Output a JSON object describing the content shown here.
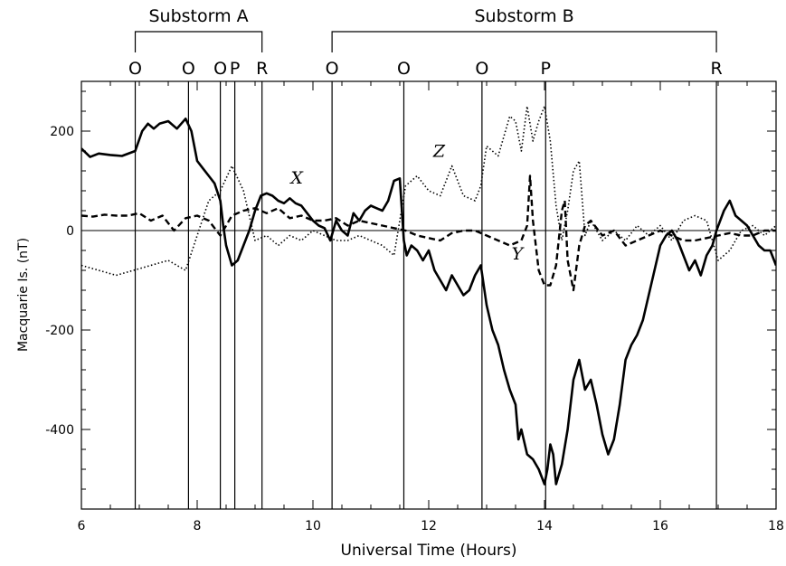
{
  "chart_data": {
    "type": "line",
    "xlabel": "Universal Time (Hours)",
    "ylabel": "Macquarie Is. (nT)",
    "xlim": [
      6,
      18
    ],
    "ylim": [
      -560,
      300
    ],
    "xticks": [
      6,
      8,
      10,
      12,
      14,
      16,
      18
    ],
    "xtick_labels": [
      "6",
      "8",
      "10",
      "12",
      "14",
      "16",
      "18"
    ],
    "yticks": [
      -400,
      -200,
      0,
      200
    ],
    "ytick_labels": [
      "-400",
      "-200",
      "0",
      "200"
    ],
    "grid": false,
    "zero_line": true,
    "brackets": [
      {
        "label": "Substorm A",
        "start": 6.93,
        "end": 9.12
      },
      {
        "label": "Substorm B",
        "start": 10.33,
        "end": 16.97
      }
    ],
    "events": [
      {
        "x": 6.93,
        "label": "O"
      },
      {
        "x": 7.85,
        "label": "O"
      },
      {
        "x": 8.4,
        "label": "O"
      },
      {
        "x": 8.65,
        "label": "P"
      },
      {
        "x": 9.12,
        "label": "R"
      },
      {
        "x": 10.33,
        "label": "O"
      },
      {
        "x": 11.57,
        "label": "O"
      },
      {
        "x": 12.92,
        "label": "O"
      },
      {
        "x": 14.02,
        "label": "P"
      },
      {
        "x": 16.97,
        "label": "R"
      }
    ],
    "series": [
      {
        "name": "X",
        "style": "solid",
        "label_at": [
          9.72,
          95
        ],
        "x": [
          6.0,
          6.15,
          6.3,
          6.5,
          6.7,
          6.93,
          7.05,
          7.15,
          7.25,
          7.35,
          7.5,
          7.65,
          7.8,
          7.9,
          7.95,
          8.0,
          8.1,
          8.2,
          8.3,
          8.4,
          8.45,
          8.5,
          8.55,
          8.6,
          8.7,
          8.8,
          8.9,
          9.0,
          9.1,
          9.2,
          9.3,
          9.4,
          9.5,
          9.6,
          9.7,
          9.8,
          9.9,
          10.0,
          10.1,
          10.2,
          10.3,
          10.4,
          10.5,
          10.6,
          10.7,
          10.8,
          10.9,
          11.0,
          11.1,
          11.2,
          11.3,
          11.4,
          11.5,
          11.57,
          11.62,
          11.7,
          11.8,
          11.9,
          12.0,
          12.1,
          12.2,
          12.3,
          12.4,
          12.5,
          12.6,
          12.7,
          12.8,
          12.9,
          13.0,
          13.1,
          13.2,
          13.3,
          13.4,
          13.5,
          13.55,
          13.6,
          13.7,
          13.8,
          13.9,
          14.0,
          14.05,
          14.1,
          14.15,
          14.2,
          14.3,
          14.4,
          14.5,
          14.6,
          14.7,
          14.8,
          14.9,
          15.0,
          15.1,
          15.2,
          15.3,
          15.4,
          15.5,
          15.6,
          15.7,
          15.8,
          15.9,
          16.0,
          16.1,
          16.2,
          16.3,
          16.4,
          16.5,
          16.6,
          16.7,
          16.8,
          16.9,
          16.97,
          17.1,
          17.2,
          17.3,
          17.4,
          17.5,
          17.6,
          17.7,
          17.8,
          17.9,
          18.0
        ],
        "values": [
          165,
          148,
          155,
          152,
          150,
          160,
          200,
          215,
          205,
          215,
          220,
          205,
          225,
          200,
          170,
          140,
          125,
          110,
          95,
          60,
          10,
          -30,
          -50,
          -70,
          -60,
          -30,
          0,
          40,
          70,
          75,
          70,
          60,
          55,
          65,
          55,
          50,
          35,
          20,
          10,
          5,
          -20,
          20,
          0,
          -10,
          35,
          20,
          40,
          50,
          45,
          40,
          60,
          100,
          105,
          -20,
          -50,
          -30,
          -40,
          -60,
          -40,
          -80,
          -100,
          -120,
          -90,
          -110,
          -130,
          -120,
          -90,
          -70,
          -150,
          -200,
          -230,
          -280,
          -320,
          -350,
          -420,
          -400,
          -450,
          -460,
          -480,
          -510,
          -480,
          -430,
          -450,
          -510,
          -470,
          -400,
          -300,
          -260,
          -320,
          -300,
          -350,
          -410,
          -450,
          -420,
          -350,
          -260,
          -230,
          -210,
          -180,
          -130,
          -80,
          -30,
          -10,
          0,
          -20,
          -50,
          -80,
          -60,
          -90,
          -50,
          -30,
          0,
          40,
          60,
          30,
          20,
          10,
          -10,
          -30,
          -40,
          -40,
          -70
        ]
      },
      {
        "name": "Y",
        "style": "dashed",
        "label_at": [
          13.53,
          -58
        ],
        "x": [
          6.0,
          6.2,
          6.4,
          6.6,
          6.8,
          7.0,
          7.2,
          7.4,
          7.6,
          7.8,
          8.0,
          8.2,
          8.4,
          8.6,
          8.8,
          9.0,
          9.2,
          9.4,
          9.6,
          9.8,
          10.0,
          10.2,
          10.4,
          10.6,
          10.8,
          11.0,
          11.2,
          11.4,
          11.6,
          11.8,
          12.0,
          12.2,
          12.4,
          12.6,
          12.8,
          13.0,
          13.2,
          13.4,
          13.6,
          13.7,
          13.75,
          13.8,
          13.9,
          14.0,
          14.1,
          14.2,
          14.3,
          14.35,
          14.4,
          14.5,
          14.6,
          14.7,
          14.8,
          15.0,
          15.2,
          15.4,
          15.6,
          15.8,
          16.0,
          16.2,
          16.4,
          16.6,
          16.8,
          17.0,
          17.2,
          17.4,
          17.6,
          17.8,
          18.0
        ],
        "values": [
          30,
          28,
          32,
          30,
          30,
          35,
          20,
          30,
          0,
          25,
          30,
          20,
          -10,
          30,
          40,
          45,
          35,
          45,
          25,
          30,
          20,
          20,
          25,
          10,
          20,
          15,
          10,
          5,
          0,
          -10,
          -15,
          -20,
          -5,
          0,
          0,
          -10,
          -20,
          -30,
          -20,
          10,
          110,
          20,
          -80,
          -110,
          -110,
          -70,
          40,
          60,
          -60,
          -120,
          -30,
          10,
          20,
          -10,
          0,
          -30,
          -20,
          -10,
          0,
          -10,
          -20,
          -20,
          -15,
          -10,
          -5,
          -10,
          -10,
          0,
          0
        ]
      },
      {
        "name": "Z",
        "style": "dotted",
        "label_at": [
          12.18,
          148
        ],
        "x": [
          6.0,
          6.3,
          6.6,
          6.9,
          7.2,
          7.5,
          7.8,
          8.0,
          8.2,
          8.4,
          8.6,
          8.8,
          9.0,
          9.2,
          9.4,
          9.6,
          9.8,
          10.0,
          10.2,
          10.4,
          10.6,
          10.8,
          11.0,
          11.2,
          11.4,
          11.6,
          11.8,
          12.0,
          12.2,
          12.4,
          12.6,
          12.8,
          12.9,
          13.0,
          13.2,
          13.4,
          13.5,
          13.6,
          13.7,
          13.8,
          13.9,
          14.0,
          14.1,
          14.2,
          14.3,
          14.4,
          14.5,
          14.6,
          14.7,
          14.8,
          15.0,
          15.2,
          15.4,
          15.6,
          15.8,
          16.0,
          16.2,
          16.4,
          16.6,
          16.8,
          17.0,
          17.2,
          17.4,
          17.6,
          17.8,
          18.0
        ],
        "values": [
          -70,
          -80,
          -90,
          -80,
          -70,
          -60,
          -80,
          -10,
          60,
          80,
          130,
          80,
          -20,
          -10,
          -30,
          -10,
          -20,
          0,
          -10,
          -20,
          -20,
          -10,
          -20,
          -30,
          -50,
          90,
          110,
          80,
          70,
          130,
          70,
          60,
          90,
          170,
          150,
          230,
          220,
          160,
          250,
          180,
          220,
          250,
          180,
          50,
          -20,
          40,
          120,
          140,
          -10,
          20,
          -20,
          0,
          -20,
          10,
          -10,
          10,
          -20,
          20,
          30,
          20,
          -60,
          -40,
          0,
          10,
          -10,
          10
        ]
      }
    ]
  }
}
